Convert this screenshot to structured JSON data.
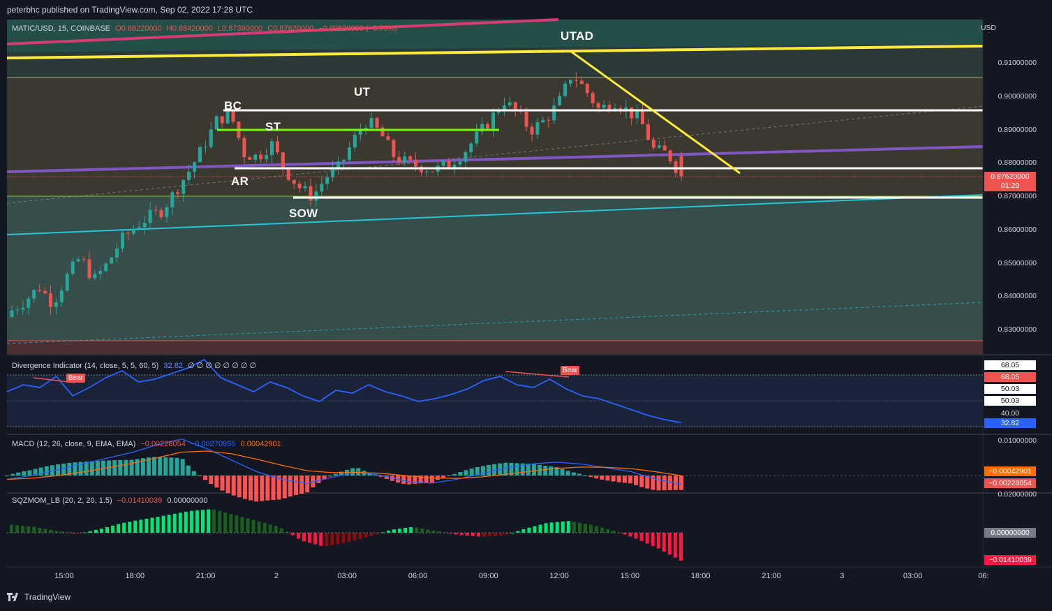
{
  "header": {
    "published": "peterbhc published on TradingView.com, Sep 02, 2022 17:28 UTC"
  },
  "footer": {
    "brand": "TradingView"
  },
  "colors": {
    "bg": "#131722",
    "up": "#26a69a",
    "down": "#ef5350",
    "yellow": "#ffeb3b",
    "purple": "#7e57c2",
    "teal": "#26c6da",
    "green": "#76ff03",
    "white": "#ffffff",
    "pink": "#d63b73"
  },
  "main_legend": {
    "symbol": "MATIC/USD, 15, COINBASE",
    "open": "O0.88220000",
    "high": "H0.88420000",
    "low": "L0.87390000",
    "close": "C0.87620000",
    "change": "−0.00620000 (−0.70%)"
  },
  "price_axis": {
    "currency": "USD",
    "ticks": [
      "0.91000000",
      "0.90000000",
      "0.89000000",
      "0.88000000",
      "0.87000000",
      "0.86000000",
      "0.85000000",
      "0.84000000",
      "0.83000000"
    ],
    "last_price": "0.87620000",
    "countdown": "01:29"
  },
  "time_axis": {
    "ticks": [
      "15:00",
      "18:00",
      "21:00",
      "2",
      "03:00",
      "06:00",
      "09:00",
      "12:00",
      "15:00",
      "18:00",
      "21:00",
      "3",
      "03:00",
      "06:"
    ]
  },
  "annotations": {
    "bc": "BC",
    "st": "ST",
    "ar": "AR",
    "ut": "UT",
    "sow": "SOW",
    "utad": "UTAD"
  },
  "divergence": {
    "label": "Divergence Indicator (14, close, 5, 5, 60, 5)",
    "value": "32.82",
    "nulls": "∅ ∅ ∅ ∅ ∅ ∅ ∅ ∅",
    "bear_label": "Bear",
    "axis": [
      "68.05",
      "68.05",
      "50.03",
      "50.03",
      "40.00",
      "32.82"
    ]
  },
  "macd": {
    "label": "MACD (12, 26, close, 9, EMA, EMA)",
    "v1": "−0.00228054",
    "v2": "−0.00270955",
    "v3": "0.00042901",
    "axis": [
      "0.01000000",
      "−0.00042901",
      "−0.00228054",
      "0.02000000"
    ]
  },
  "sqz": {
    "label": "SQZMOM_LB (20, 2, 20, 1.5)",
    "v1": "−0.01410039",
    "v2": "0.00000000",
    "axis": [
      "0.00000000",
      "−0.01410039"
    ]
  },
  "chart_data": {
    "type": "candlestick",
    "symbol": "MATIC/USD",
    "interval": "15",
    "ylim": [
      0.8235,
      0.9215
    ],
    "x": [
      "15:00",
      "18:00",
      "21:00",
      "2",
      "03:00",
      "06:00",
      "09:00",
      "12:00",
      "15:00",
      "18:00",
      "21:00",
      "3",
      "03:00",
      "06:"
    ],
    "close_path": [
      0.836,
      0.839,
      0.843,
      0.838,
      0.846,
      0.852,
      0.845,
      0.85,
      0.857,
      0.861,
      0.864,
      0.866,
      0.872,
      0.878,
      0.885,
      0.893,
      0.895,
      0.883,
      0.882,
      0.886,
      0.878,
      0.873,
      0.87,
      0.876,
      0.879,
      0.887,
      0.893,
      0.889,
      0.882,
      0.88,
      0.879,
      0.878,
      0.88,
      0.883,
      0.888,
      0.893,
      0.899,
      0.895,
      0.89,
      0.893,
      0.898,
      0.907,
      0.902,
      0.896,
      0.899,
      0.896,
      0.893,
      0.884,
      0.883,
      0.8762
    ],
    "levels": {
      "BC": 0.896,
      "ST": 0.89,
      "AR": 0.879,
      "SOW": 0.87,
      "UTAD": 0.914
    },
    "divergence_series": [
      55,
      60,
      58,
      66,
      52,
      58,
      65,
      70,
      62,
      64,
      68,
      72,
      78,
      65,
      60,
      55,
      62,
      58,
      52,
      48,
      56,
      54,
      60,
      55,
      52,
      48,
      50,
      53,
      57,
      63,
      66,
      60,
      58,
      64,
      57,
      52,
      50,
      46,
      42,
      38,
      35,
      32.82
    ],
    "macd_line": [
      -0.001,
      0.0,
      0.0015,
      0.003,
      0.0045,
      0.006,
      0.008,
      0.0095,
      0.007,
      0.004,
      0.001,
      -0.001,
      -0.002,
      -0.0005,
      0.001,
      0.0,
      -0.0015,
      -0.002,
      -0.001,
      0.0005,
      0.002,
      0.003,
      0.0035,
      0.003,
      0.002,
      0.001,
      -0.001,
      -0.00228
    ],
    "squeeze_hist": [
      0.004,
      0.003,
      0.001,
      -0.0005,
      0.002,
      0.005,
      0.007,
      0.009,
      0.011,
      0.012,
      0.009,
      0.006,
      0.003,
      -0.004,
      -0.007,
      -0.005,
      -0.002,
      0.0015,
      0.003,
      0.001,
      -0.001,
      -0.002,
      -0.0015,
      0.002,
      0.005,
      0.006,
      0.004,
      0.001,
      -0.003,
      -0.008,
      -0.0141
    ]
  }
}
